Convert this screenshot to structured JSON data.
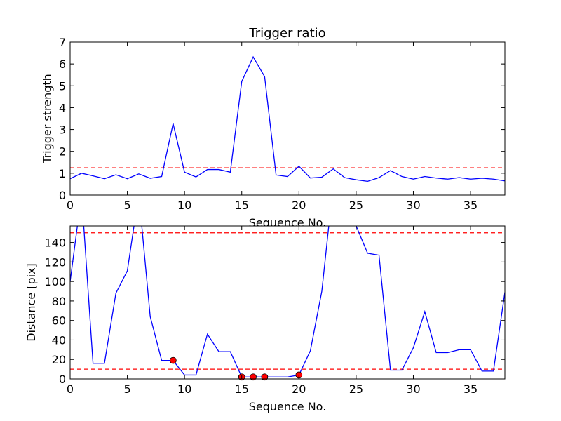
{
  "chart_data": [
    {
      "type": "line",
      "title": "Trigger ratio",
      "xlabel": "Sequence No.",
      "ylabel": "Trigger strength",
      "xlim": [
        0,
        38
      ],
      "ylim": [
        0,
        7
      ],
      "xticks": [
        "0",
        "5",
        "10",
        "15",
        "20",
        "25",
        "30",
        "35"
      ],
      "yticks": [
        "0",
        "1",
        "2",
        "3",
        "4",
        "5",
        "6",
        "7"
      ],
      "series": [
        {
          "color": "#0000ff",
          "x": [
            0,
            1,
            2,
            3,
            4,
            5,
            6,
            7,
            8,
            9,
            10,
            11,
            12,
            13,
            14,
            15,
            16,
            17,
            18,
            19,
            20,
            21,
            22,
            23,
            24,
            25,
            26,
            27,
            28,
            29,
            30,
            31,
            32,
            33,
            34,
            35,
            36,
            37,
            38
          ],
          "y": [
            0.75,
            1.0,
            0.88,
            0.75,
            0.93,
            0.75,
            0.97,
            0.77,
            0.85,
            3.27,
            1.05,
            0.83,
            1.17,
            1.17,
            1.05,
            5.2,
            6.32,
            5.42,
            0.92,
            0.85,
            1.32,
            0.78,
            0.82,
            1.2,
            0.8,
            0.7,
            0.63,
            0.8,
            1.12,
            0.85,
            0.73,
            0.85,
            0.78,
            0.73,
            0.8,
            0.73,
            0.77,
            0.73,
            0.65
          ]
        }
      ],
      "hlines": [
        {
          "y": 1.25,
          "color": "#ff0000",
          "style": "dashed"
        }
      ],
      "grid": false
    },
    {
      "type": "line",
      "title": "",
      "xlabel": "Sequence No.",
      "ylabel": "Distance [pix]",
      "xlim": [
        0,
        38
      ],
      "ylim": [
        0,
        157
      ],
      "xticks": [
        "0",
        "5",
        "10",
        "15",
        "20",
        "25",
        "30",
        "35"
      ],
      "yticks": [
        "0",
        "20",
        "40",
        "60",
        "80",
        "100",
        "120",
        "140"
      ],
      "series": [
        {
          "color": "#0000ff",
          "x": [
            0,
            1,
            2,
            3,
            4,
            5,
            6,
            7,
            8,
            9,
            10,
            11,
            12,
            13,
            14,
            15,
            16,
            17,
            18,
            19,
            20,
            21,
            22,
            23,
            24,
            25,
            26,
            27,
            28,
            29,
            30,
            31,
            32,
            33,
            34,
            35,
            36,
            37,
            38
          ],
          "y": [
            100,
            190,
            16,
            16,
            88,
            111,
            190,
            64,
            19,
            19,
            4,
            4,
            46,
            28,
            28,
            2,
            2,
            2,
            2,
            2,
            4,
            29,
            90,
            200,
            200,
            157,
            129,
            127,
            9,
            9,
            32,
            69,
            27,
            27,
            30,
            30,
            8,
            8,
            89
          ]
        }
      ],
      "markers": {
        "color": "#ff0000",
        "x": [
          9,
          15,
          16,
          17,
          20
        ],
        "y": [
          19,
          2,
          2,
          2,
          4
        ]
      },
      "hlines": [
        {
          "y": 150,
          "color": "#ff0000",
          "style": "dashed"
        },
        {
          "y": 10,
          "color": "#ff0000",
          "style": "dashed"
        }
      ],
      "grid": false
    }
  ]
}
